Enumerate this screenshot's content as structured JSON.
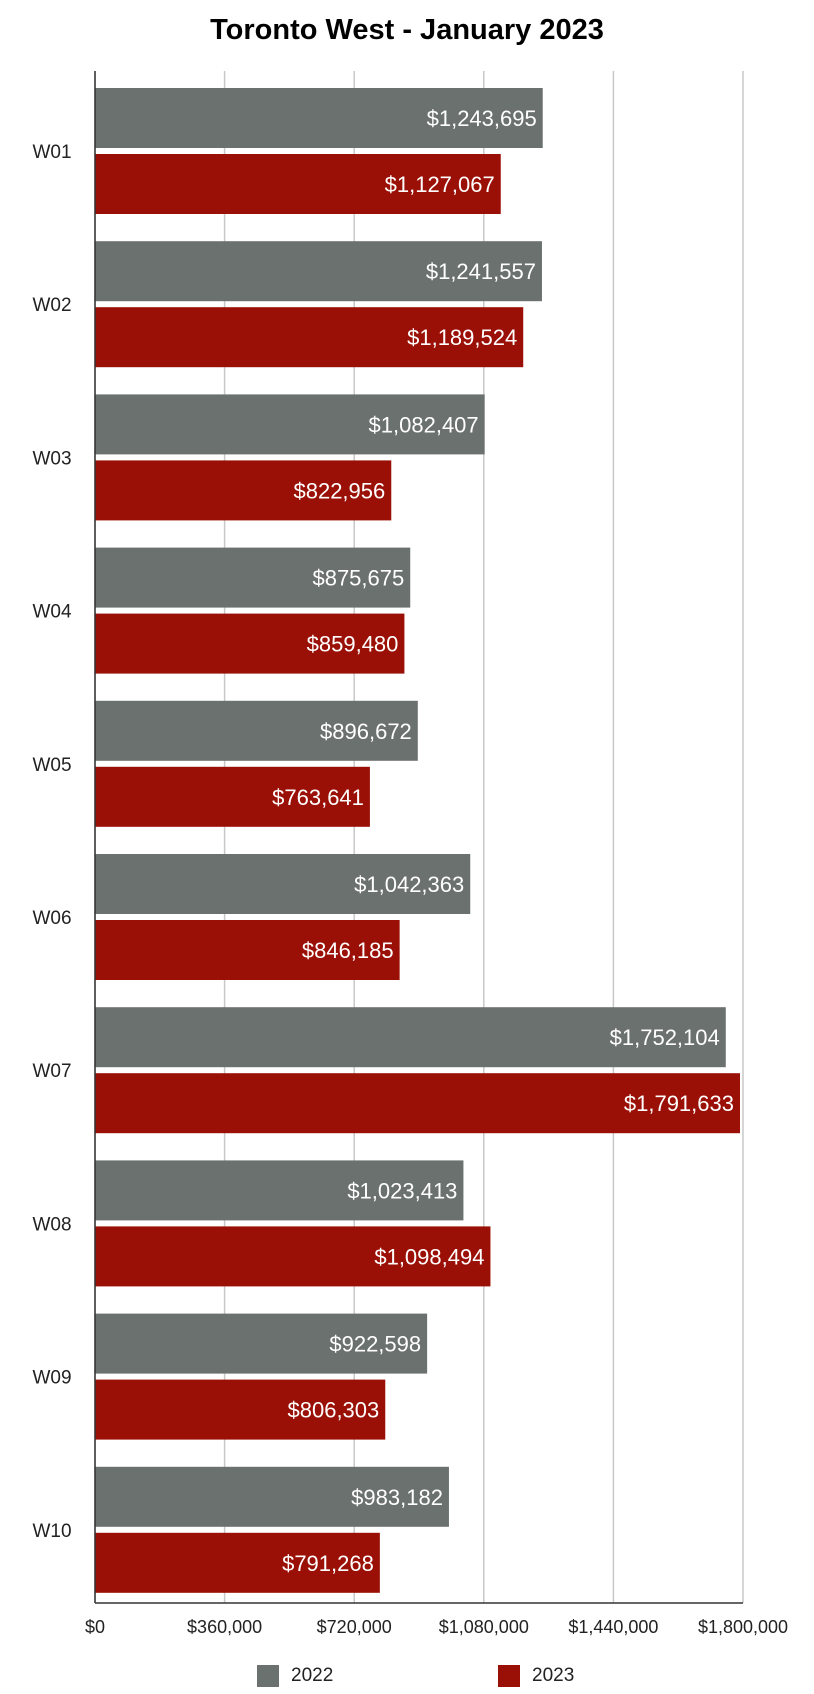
{
  "chart_data": {
    "type": "bar",
    "orientation": "horizontal",
    "title": "Toronto West - January 2023",
    "categories": [
      "W01",
      "W02",
      "W03",
      "W04",
      "W05",
      "W06",
      "W07",
      "W08",
      "W09",
      "W10"
    ],
    "series": [
      {
        "name": "2022",
        "color": "#6b716e",
        "values": [
          1243695,
          1241557,
          1082407,
          875675,
          896672,
          1042363,
          1752104,
          1023413,
          922598,
          983182
        ],
        "labels": [
          "$1,243,695",
          "$1,241,557",
          "$1,082,407",
          "$875,675",
          "$896,672",
          "$1,042,363",
          "$1,752,104",
          "$1,023,413",
          "$922,598",
          "$983,182"
        ]
      },
      {
        "name": "2023",
        "color": "#9b1006",
        "values": [
          1127067,
          1189524,
          822956,
          859480,
          763641,
          846185,
          1791633,
          1098494,
          806303,
          791268
        ],
        "labels": [
          "$1,127,067",
          "$1,189,524",
          "$822,956",
          "$859,480",
          "$763,641",
          "$846,185",
          "$1,791,633",
          "$1,098,494",
          "$806,303",
          "$791,268"
        ]
      }
    ],
    "xlim": [
      0,
      1800000
    ],
    "xticks": [
      0,
      360000,
      720000,
      1080000,
      1440000,
      1800000
    ],
    "xtick_labels": [
      "$0",
      "$360,000",
      "$720,000",
      "$1,080,000",
      "$1,440,000",
      "$1,800,000"
    ],
    "grid": "vertical",
    "legend_position": "bottom"
  }
}
